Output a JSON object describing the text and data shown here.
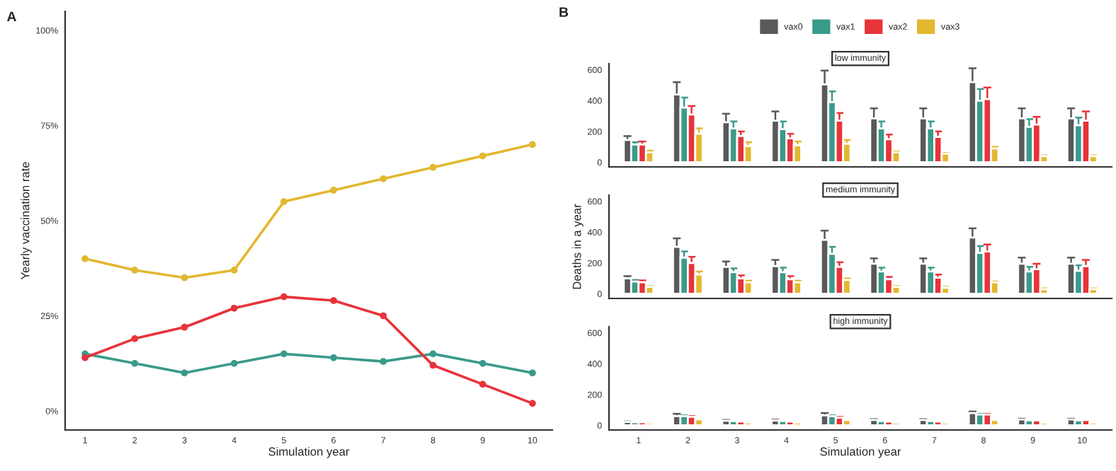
{
  "chart_data": [
    {
      "type": "line",
      "title": "A",
      "xlabel": "Simulation year",
      "ylabel": "Yearly vaccination rate",
      "categories": [
        "1",
        "2",
        "3",
        "4",
        "5",
        "6",
        "7",
        "8",
        "9",
        "10"
      ],
      "ylim": [
        -5,
        105
      ],
      "yticks": [
        {
          "value": 0,
          "label": "0%"
        },
        {
          "value": 25,
          "label": "25%"
        },
        {
          "value": 50,
          "label": "50%"
        },
        {
          "value": 75,
          "label": "75%"
        },
        {
          "value": 100,
          "label": "100%"
        }
      ],
      "marker": "circle",
      "line_style": "solid",
      "grid": false,
      "legend": false,
      "series": [
        {
          "color": "#3a9a8a",
          "values": [
            15,
            12.5,
            10,
            12.5,
            15,
            14,
            13,
            15,
            12.5,
            10
          ]
        },
        {
          "color": "#e8333a",
          "values": [
            14,
            19,
            22,
            27,
            30,
            29,
            25,
            12,
            7,
            2
          ]
        },
        {
          "color": "#e2b830",
          "values": [
            40,
            37,
            35,
            37,
            55,
            58,
            61,
            64,
            67,
            70
          ]
        }
      ]
    },
    {
      "type": "bar",
      "title": "low immunity",
      "annotations": [
        "B"
      ],
      "categories": [
        "1",
        "2",
        "3",
        "4",
        "5",
        "6",
        "7",
        "8",
        "9",
        "10"
      ],
      "ylim": [
        -30,
        640
      ],
      "yticks": [
        0,
        200,
        400,
        600
      ],
      "tick_labels": "y",
      "grid": false,
      "legend": "top",
      "series": [
        {
          "name": "vax0",
          "color": "#595959",
          "values": [
            145,
            440,
            260,
            270,
            505,
            285,
            285,
            520,
            285,
            285
          ],
          "errors": [
            25,
            80,
            55,
            60,
            90,
            65,
            65,
            90,
            65,
            65
          ]
        },
        {
          "name": "vax1",
          "color": "#3a9a8a",
          "values": [
            115,
            355,
            220,
            215,
            390,
            220,
            220,
            400,
            230,
            240
          ],
          "errors": [
            15,
            65,
            45,
            50,
            70,
            45,
            45,
            75,
            50,
            50
          ]
        },
        {
          "name": "vax2",
          "color": "#e8333a",
          "values": [
            115,
            310,
            170,
            155,
            270,
            150,
            165,
            410,
            245,
            270
          ],
          "errors": [
            20,
            55,
            30,
            30,
            50,
            30,
            35,
            75,
            50,
            60
          ]
        },
        {
          "name": "vax3",
          "color": "#e2b830",
          "values": [
            65,
            185,
            105,
            110,
            120,
            65,
            55,
            90,
            40,
            40
          ],
          "errors": [
            10,
            35,
            25,
            25,
            25,
            5,
            5,
            10,
            5,
            5
          ]
        }
      ]
    },
    {
      "type": "bar",
      "title": "medium immunity",
      "ylabel": "Deaths in a year",
      "categories": [
        "1",
        "2",
        "3",
        "4",
        "5",
        "6",
        "7",
        "8",
        "9",
        "10"
      ],
      "ylim": [
        -30,
        640
      ],
      "yticks": [
        0,
        200,
        400,
        600
      ],
      "tick_labels": "y",
      "grid": false,
      "legend": false,
      "series": [
        {
          "color": "#595959",
          "values": [
            100,
            305,
            175,
            180,
            350,
            195,
            195,
            365,
            195,
            195
          ],
          "errors": [
            15,
            55,
            35,
            40,
            60,
            35,
            35,
            60,
            40,
            40
          ]
        },
        {
          "color": "#3a9a8a",
          "values": [
            80,
            235,
            140,
            140,
            260,
            145,
            145,
            265,
            145,
            150
          ],
          "errors": [
            10,
            40,
            25,
            30,
            45,
            25,
            25,
            45,
            30,
            35
          ]
        },
        {
          "color": "#e8333a",
          "values": [
            75,
            200,
            100,
            95,
            175,
            95,
            105,
            275,
            160,
            180
          ],
          "errors": [
            12,
            40,
            20,
            20,
            30,
            15,
            20,
            45,
            35,
            40
          ]
        },
        {
          "color": "#e2b830",
          "values": [
            45,
            125,
            75,
            75,
            90,
            45,
            40,
            75,
            30,
            30
          ],
          "errors": [
            5,
            20,
            10,
            10,
            10,
            5,
            5,
            5,
            5,
            5
          ]
        }
      ]
    },
    {
      "type": "bar",
      "title": "high immunity",
      "xlabel": "Simulation year",
      "categories": [
        "1",
        "2",
        "3",
        "4",
        "5",
        "6",
        "7",
        "8",
        "9",
        "10"
      ],
      "ylim": [
        -30,
        640
      ],
      "yticks": [
        0,
        200,
        400,
        600
      ],
      "grid": false,
      "legend": false,
      "series": [
        {
          "color": "#595959",
          "values": [
            22,
            60,
            30,
            32,
            65,
            35,
            35,
            80,
            38,
            38
          ],
          "errors": [
            3,
            15,
            5,
            5,
            15,
            5,
            5,
            10,
            5,
            5
          ]
        },
        {
          "color": "#3a9a8a",
          "values": [
            20,
            60,
            28,
            28,
            60,
            28,
            28,
            70,
            33,
            33
          ],
          "errors": [
            null,
            5,
            null,
            null,
            5,
            null,
            null,
            5,
            null,
            null
          ]
        },
        {
          "color": "#e8333a",
          "values": [
            20,
            55,
            25,
            25,
            50,
            25,
            25,
            70,
            33,
            35
          ],
          "errors": [
            null,
            5,
            null,
            null,
            5,
            null,
            null,
            5,
            null,
            null
          ]
        },
        {
          "color": "#e2b830",
          "values": [
            15,
            40,
            18,
            18,
            35,
            17,
            17,
            35,
            17,
            17
          ]
        }
      ]
    }
  ]
}
